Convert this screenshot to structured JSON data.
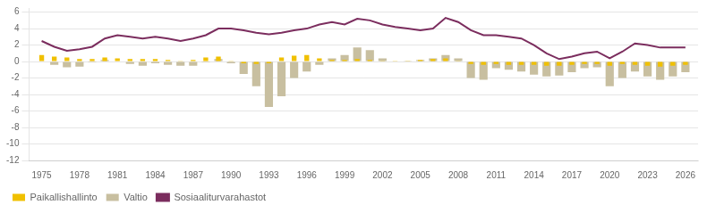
{
  "chart_data": {
    "type": "bar",
    "x": [
      1975,
      1976,
      1977,
      1978,
      1979,
      1980,
      1981,
      1982,
      1983,
      1984,
      1985,
      1986,
      1987,
      1988,
      1989,
      1990,
      1991,
      1992,
      1993,
      1994,
      1995,
      1996,
      1997,
      1998,
      1999,
      2000,
      2001,
      2002,
      2003,
      2004,
      2005,
      2006,
      2007,
      2008,
      2009,
      2010,
      2011,
      2012,
      2013,
      2014,
      2015,
      2016,
      2017,
      2018,
      2019,
      2020,
      2021,
      2022,
      2023,
      2024,
      2025,
      2026
    ],
    "series": [
      {
        "name": "Paikallishallinto",
        "type": "bar",
        "color": "#f0c000",
        "values": [
          0.8,
          0.6,
          0.5,
          0.3,
          0.3,
          0.5,
          0.4,
          0.3,
          0.3,
          0.3,
          0.2,
          0.1,
          0.2,
          0.5,
          0.6,
          0.1,
          -0.2,
          -0.3,
          -0.2,
          0.5,
          0.7,
          0.8,
          0.4,
          0.2,
          0.2,
          0.3,
          0.2,
          0.1,
          0.1,
          0.1,
          0.2,
          0.3,
          0.4,
          0.1,
          -0.3,
          -0.4,
          -0.3,
          -0.4,
          -0.4,
          -0.4,
          -0.5,
          -0.5,
          -0.4,
          -0.3,
          -0.3,
          -0.5,
          -0.3,
          -0.4,
          -0.5,
          -0.6,
          -0.5,
          -0.4
        ]
      },
      {
        "name": "Valtio",
        "type": "bar",
        "color": "#c8bfa0",
        "values": [
          0.0,
          -0.4,
          -0.7,
          -0.6,
          -0.1,
          0.2,
          0.0,
          -0.3,
          -0.5,
          -0.2,
          -0.4,
          -0.5,
          -0.5,
          -0.1,
          0.3,
          -0.2,
          -1.5,
          -3.0,
          -5.5,
          -4.2,
          -2.0,
          -1.2,
          -0.4,
          0.4,
          0.8,
          1.7,
          1.4,
          0.4,
          0.0,
          0.1,
          0.2,
          0.4,
          0.8,
          0.4,
          -2.0,
          -2.2,
          -0.8,
          -1.0,
          -1.2,
          -1.6,
          -1.8,
          -1.7,
          -1.3,
          -0.8,
          -0.7,
          -3.0,
          -2.0,
          -1.2,
          -1.8,
          -2.2,
          -1.8,
          -1.3
        ]
      },
      {
        "name": "Sosiaaliturvarahastot",
        "type": "line",
        "color": "#7b2d5e",
        "values": [
          2.5,
          1.8,
          1.3,
          1.5,
          1.8,
          2.8,
          3.2,
          3.0,
          2.8,
          3.0,
          2.8,
          2.5,
          2.8,
          3.2,
          4.0,
          4.0,
          3.8,
          3.5,
          3.3,
          3.5,
          3.8,
          4.0,
          4.5,
          4.8,
          4.5,
          5.2,
          5.0,
          4.5,
          4.2,
          4.0,
          3.8,
          4.0,
          5.3,
          4.8,
          3.8,
          3.2,
          3.2,
          3.0,
          2.8,
          2.0,
          1.0,
          0.3,
          0.6,
          1.0,
          1.2,
          0.4,
          1.2,
          2.2,
          2.0,
          1.7,
          1.7,
          1.7
        ]
      }
    ],
    "xlim": [
      1974,
      2027
    ],
    "xticks": [
      1975,
      1978,
      1981,
      1984,
      1987,
      1990,
      1993,
      1996,
      1999,
      2002,
      2005,
      2008,
      2011,
      2014,
      2017,
      2020,
      2023,
      2026
    ],
    "ylim": [
      -12,
      6.5
    ],
    "yticks": [
      6,
      4,
      2,
      0,
      -2,
      -4,
      -6,
      -8,
      -10,
      -12
    ],
    "grid": true,
    "legend": "lower left"
  }
}
